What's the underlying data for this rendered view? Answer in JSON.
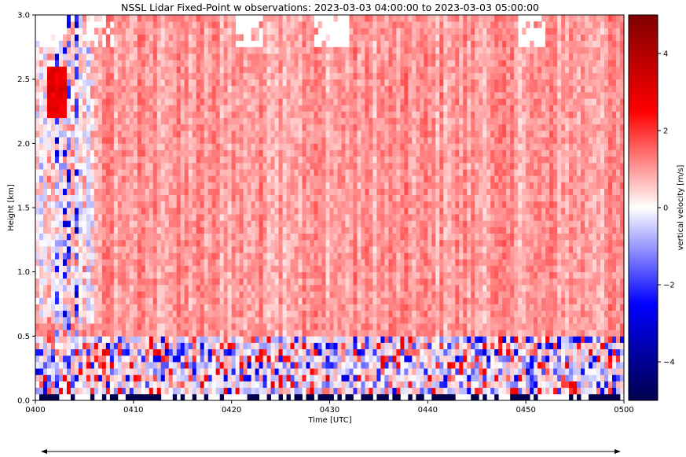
{
  "chart_data": {
    "type": "heatmap",
    "title": "NSSL Lidar Fixed-Point w  observations: 2023-03-03 04:00:00 to 2023-03-03 05:00:00",
    "xlabel": "Time [UTC]",
    "ylabel": "Height [km]",
    "colorbar_label": "vertical velocity [m/s]",
    "colormap": "seismic",
    "x_ticks": [
      "0400",
      "0410",
      "0420",
      "0430",
      "0440",
      "0450",
      "0500"
    ],
    "xlim": [
      "04:00",
      "05:00"
    ],
    "y_ticks": [
      "0.0",
      "0.5",
      "1.0",
      "1.5",
      "2.0",
      "2.5",
      "3.0"
    ],
    "ylim": [
      0,
      3.0
    ],
    "colorbar_ticks": [
      "4",
      "2",
      "0",
      "−2",
      "−4"
    ],
    "clim": [
      -5,
      5
    ],
    "grid": false,
    "field_summary": {
      "dominant_value_m_s": 1.0,
      "near_surface_layer_km": [
        0,
        0.5
      ],
      "near_surface_range_m_s": [
        -3,
        3
      ],
      "lowest_bins_km": [
        0,
        0.05
      ],
      "lowest_bins_value_m_s": -5,
      "missing_data_regions": "white gaps near top (2.7-3.0 km) and upper-left corner",
      "negative_streak_times_utc": [
        "04:02",
        "04:03",
        "04:04"
      ],
      "strong_positive_near": {
        "time_utc": "04:02",
        "height_km": 2.4,
        "value_m_s": 3.5
      }
    }
  }
}
